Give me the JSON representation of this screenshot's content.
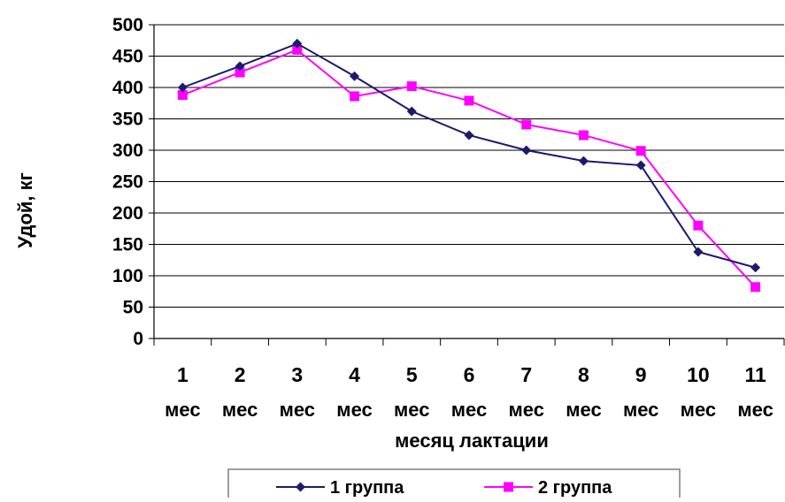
{
  "chart_data": {
    "type": "line",
    "title": "",
    "xlabel": "месяц лактации",
    "ylabel": "Удой, кг",
    "ylim": [
      0,
      500
    ],
    "yticks": [
      0,
      50,
      100,
      150,
      200,
      250,
      300,
      350,
      400,
      450,
      500
    ],
    "grid": true,
    "legend_position": "bottom",
    "categories": [
      {
        "num": "1",
        "unit": "мес"
      },
      {
        "num": "2",
        "unit": "мес"
      },
      {
        "num": "3",
        "unit": "мес"
      },
      {
        "num": "4",
        "unit": "мес"
      },
      {
        "num": "5",
        "unit": "мес"
      },
      {
        "num": "6",
        "unit": "мес"
      },
      {
        "num": "7",
        "unit": "мес"
      },
      {
        "num": "8",
        "unit": "мес"
      },
      {
        "num": "9",
        "unit": "мес"
      },
      {
        "num": "10",
        "unit": "мес"
      },
      {
        "num": "11",
        "unit": "мес"
      }
    ],
    "series": [
      {
        "name": "1 группа",
        "color": "#1a1a6e",
        "marker": "diamond",
        "values": [
          400,
          434,
          470,
          418,
          362,
          324,
          300,
          283,
          276,
          138,
          113
        ]
      },
      {
        "name": "2 группа",
        "color": "#ff00ff",
        "marker": "square",
        "values": [
          388,
          424,
          460,
          386,
          402,
          379,
          341,
          324,
          299,
          180,
          82
        ]
      }
    ]
  }
}
